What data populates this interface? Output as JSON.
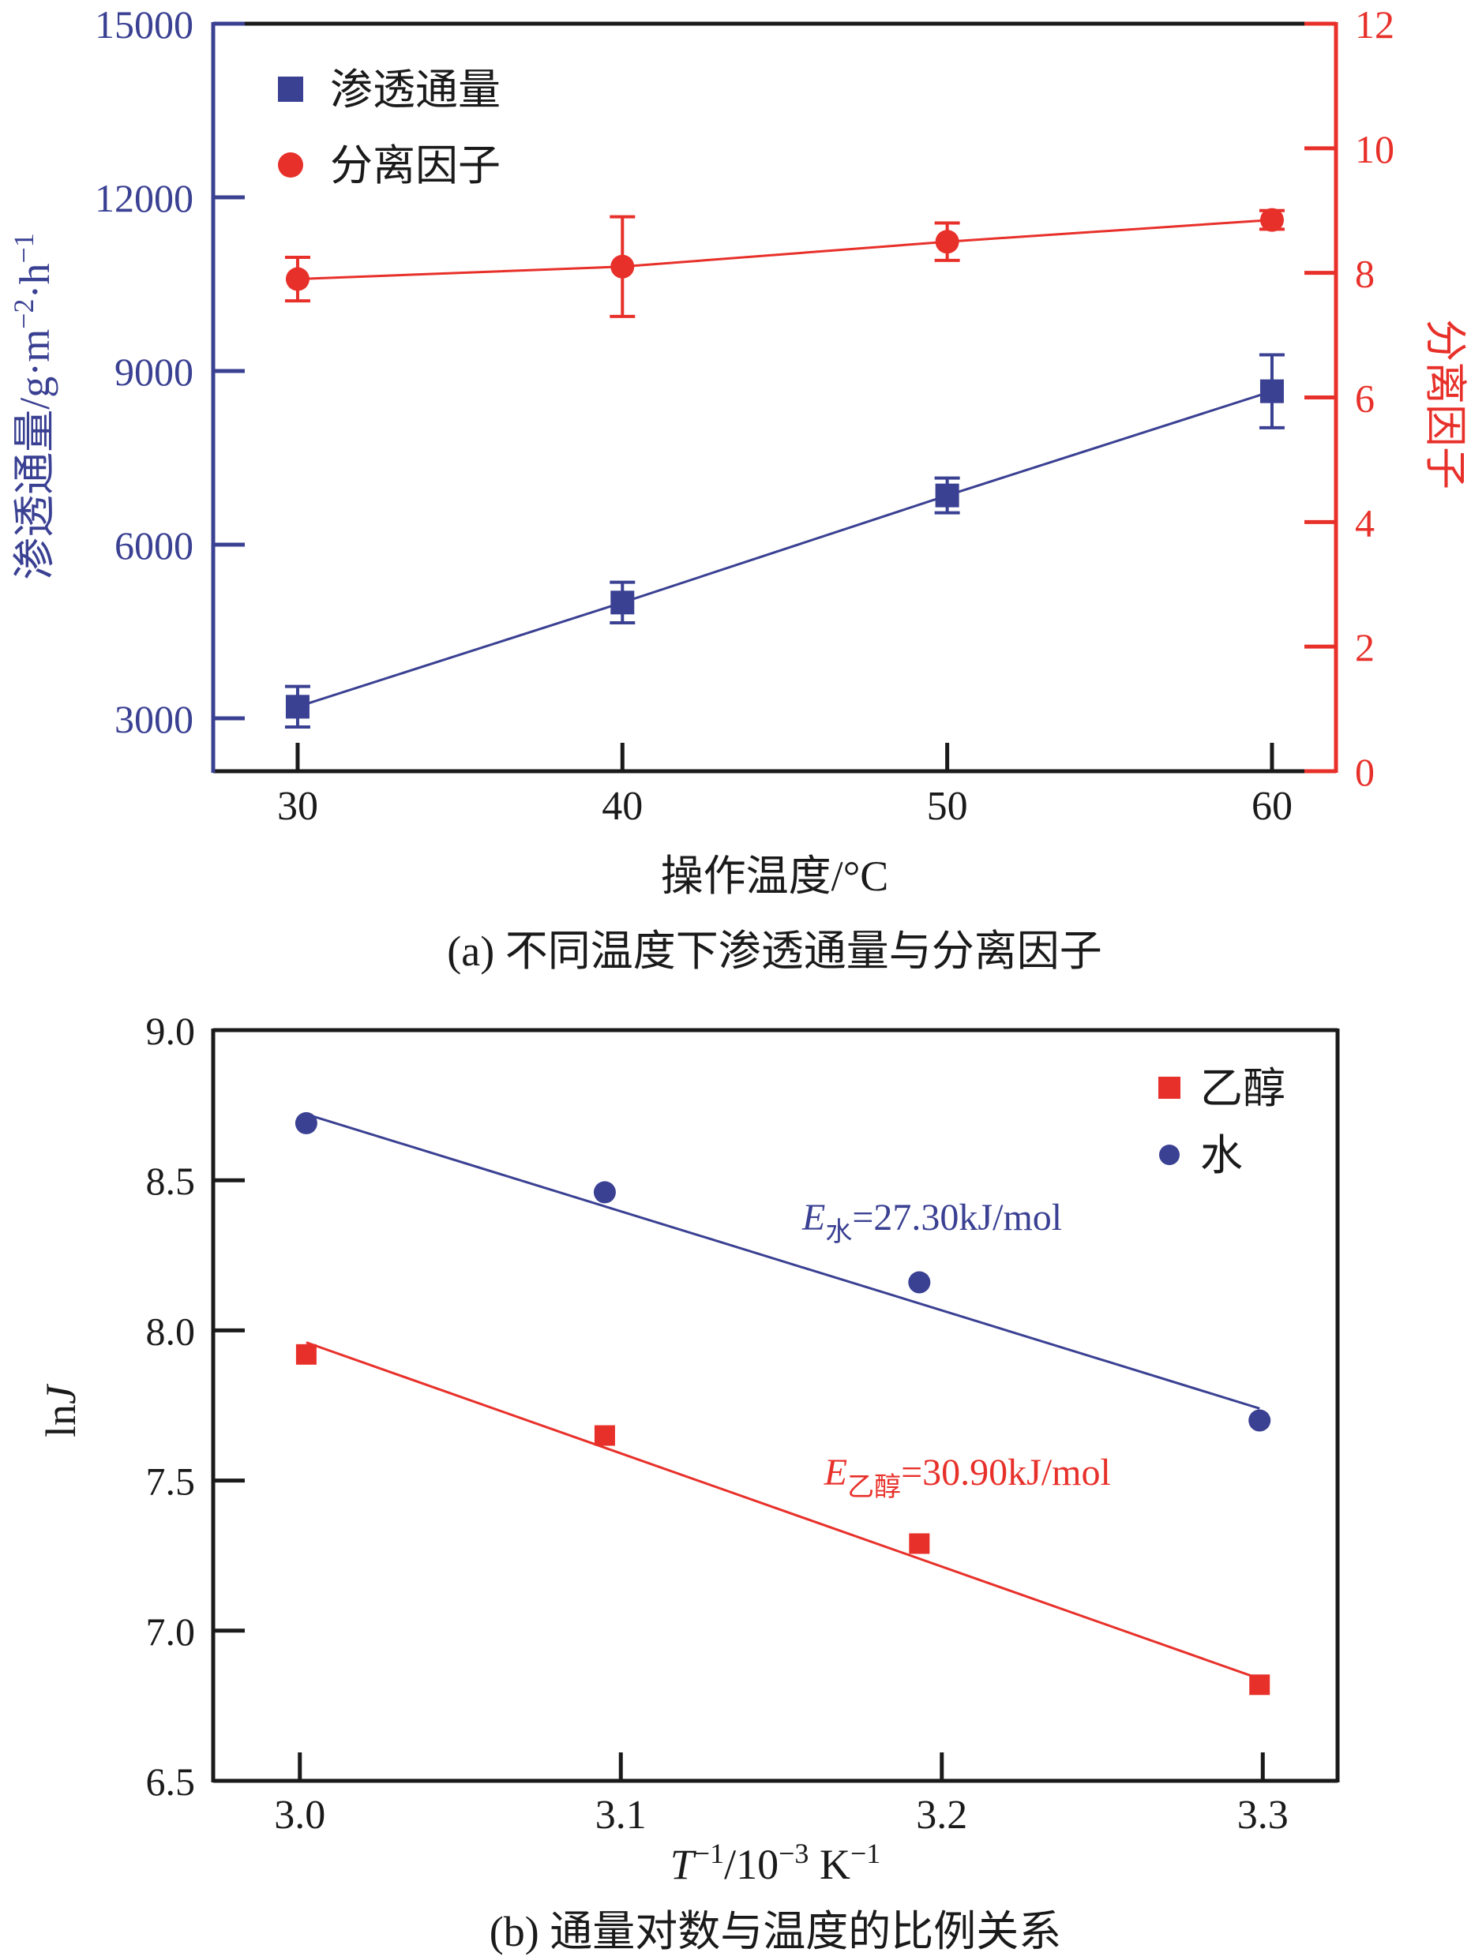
{
  "figure": {
    "background": "#ffffff"
  },
  "colors": {
    "blue": "#3a4092",
    "red": "#e8302a",
    "black": "#1a1a1a"
  },
  "chart_data": [
    {
      "id": "a",
      "type": "line",
      "caption": "(a) 不同温度下渗透通量与分离因子",
      "xlabel": "操作温度/°C",
      "x": {
        "tick_values": [
          30,
          40,
          50,
          60
        ],
        "tick_labels": [
          "30",
          "40",
          "50",
          "60"
        ],
        "range": [
          27.4,
          61.97
        ]
      },
      "left_axis": {
        "title_parts": [
          {
            "t": "渗透通量/g·m"
          },
          {
            "t": "−2",
            "sup": true
          },
          {
            "t": "·h"
          },
          {
            "t": "−1",
            "sup": true
          }
        ],
        "tick_values": [
          3000,
          6000,
          9000,
          12000,
          15000
        ],
        "tick_labels": [
          "3000",
          "6000",
          "9000",
          "12000",
          "15000"
        ],
        "range": [
          2086,
          15000
        ],
        "color": "blue"
      },
      "right_axis": {
        "title": "分离因子",
        "tick_values": [
          0,
          2,
          4,
          6,
          8,
          10,
          12
        ],
        "tick_labels": [
          "0",
          "2",
          "4",
          "6",
          "8",
          "10",
          "12"
        ],
        "range": [
          0,
          12
        ],
        "color": "red"
      },
      "grid": false,
      "legend_position": "upper-left",
      "series": [
        {
          "name": "渗透通量",
          "axis": "left",
          "marker": "square",
          "color": "blue",
          "connect": true,
          "x": [
            30,
            40,
            50,
            60
          ],
          "y": [
            3200,
            5000,
            6850,
            8650
          ],
          "yerr": [
            350,
            350,
            300,
            630
          ]
        },
        {
          "name": "分离因子",
          "axis": "right",
          "marker": "circle",
          "color": "red",
          "connect": true,
          "x": [
            30,
            40,
            50,
            60
          ],
          "y": [
            7.9,
            8.1,
            8.5,
            8.85
          ],
          "yerr": [
            0.35,
            0.8,
            0.3,
            0.15
          ]
        }
      ]
    },
    {
      "id": "b",
      "type": "scatter",
      "caption": "(b) 通量对数与温度的比例关系",
      "xlabel_parts": [
        {
          "t": "T",
          "italic": true
        },
        {
          "t": "−1",
          "sup": true
        },
        {
          "t": "/10"
        },
        {
          "t": "−3",
          "sup": true
        },
        {
          "t": " K"
        },
        {
          "t": "−1",
          "sup": true
        }
      ],
      "ylabel_parts": [
        {
          "t": "ln"
        },
        {
          "t": "J",
          "italic": true
        }
      ],
      "x": {
        "tick_values": [
          3.0,
          3.1,
          3.2,
          3.3
        ],
        "tick_labels": [
          "3.0",
          "3.1",
          "3.2",
          "3.3"
        ],
        "range": [
          2.973,
          3.3233
        ]
      },
      "y": {
        "tick_values": [
          6.5,
          7.0,
          7.5,
          8.0,
          8.5,
          9.0
        ],
        "tick_labels": [
          "6.5",
          "7.0",
          "7.5",
          "8.0",
          "8.5",
          "9.0"
        ],
        "range": [
          6.5,
          9.0
        ]
      },
      "grid": false,
      "legend_position": "upper-right",
      "series": [
        {
          "name": "乙醇",
          "marker": "square",
          "color": "red",
          "x": [
            3.002,
            3.095,
            3.193,
            3.299
          ],
          "y": [
            7.92,
            7.65,
            7.29,
            6.82
          ],
          "fit_line": {
            "x": [
              3.002,
              3.299
            ],
            "y": [
              7.96,
              6.84
            ]
          },
          "annotation": {
            "pre": "E",
            "sub": "乙醇",
            "post": "=30.90kJ/mol",
            "x": 3.208,
            "y": 7.53
          }
        },
        {
          "name": "水",
          "marker": "circle",
          "color": "blue",
          "x": [
            3.002,
            3.095,
            3.193,
            3.299
          ],
          "y": [
            8.69,
            8.46,
            8.16,
            7.7
          ],
          "fit_line": {
            "x": [
              3.002,
              3.299
            ],
            "y": [
              8.72,
              7.74
            ]
          },
          "annotation": {
            "pre": "E",
            "sub": "水",
            "post": "=27.30kJ/mol",
            "x": 3.197,
            "y": 8.38
          }
        }
      ]
    }
  ]
}
